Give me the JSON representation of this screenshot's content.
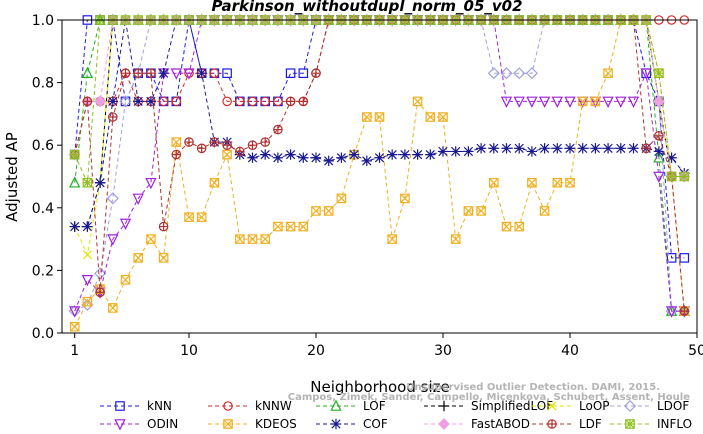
{
  "chart_data": {
    "type": "line",
    "title": "Parkinson_withoutdupl_norm_05_v02",
    "xlabel": "Neighborhood size",
    "ylabel": "Adjusted AP",
    "xlim": [
      0,
      50
    ],
    "ylim": [
      0,
      1
    ],
    "xticks": [
      "1",
      "10",
      "20",
      "30",
      "40",
      "50"
    ],
    "yticks": [
      "0.0",
      "0.2",
      "0.4",
      "0.6",
      "0.8",
      "1.0"
    ],
    "grid": false,
    "legend_position": "bottom",
    "x": [
      1,
      2,
      3,
      4,
      5,
      6,
      7,
      8,
      9,
      10,
      11,
      12,
      13,
      14,
      15,
      16,
      17,
      18,
      19,
      20,
      21,
      22,
      23,
      24,
      25,
      26,
      27,
      28,
      29,
      30,
      31,
      32,
      33,
      34,
      35,
      36,
      37,
      38,
      39,
      40,
      41,
      42,
      43,
      44,
      45,
      46,
      47,
      48,
      49
    ],
    "series": [
      {
        "name": "kNN",
        "color": "#1a1ae6",
        "dash": "4,3",
        "marker": "square",
        "values": [
          0.57,
          1,
          1,
          1,
          0.74,
          0.83,
          0.83,
          0.74,
          0.74,
          1,
          0.83,
          0.83,
          0.83,
          0.74,
          0.74,
          0.74,
          0.74,
          0.83,
          0.83,
          1,
          1,
          1,
          1,
          1,
          1,
          1,
          1,
          1,
          1,
          1,
          1,
          1,
          1,
          1,
          1,
          1,
          1,
          1,
          1,
          1,
          1,
          1,
          1,
          1,
          1,
          0.83,
          0.74,
          0.24,
          0.24
        ]
      },
      {
        "name": "kNNW",
        "color": "#d42a2a",
        "dash": "4,3",
        "marker": "circle",
        "values": [
          0.57,
          0.74,
          0.74,
          0.74,
          0.83,
          0.74,
          0.74,
          0.74,
          0.74,
          0.83,
          0.83,
          0.83,
          0.74,
          0.74,
          0.74,
          0.74,
          0.74,
          0.74,
          0.74,
          0.83,
          1,
          1,
          1,
          1,
          1,
          1,
          1,
          1,
          1,
          1,
          1,
          1,
          1,
          1,
          1,
          1,
          1,
          1,
          1,
          1,
          1,
          1,
          1,
          1,
          1,
          1,
          1,
          1,
          1
        ]
      },
      {
        "name": "LOF",
        "color": "#20b020",
        "dash": "4,3",
        "marker": "triangle-up",
        "values": [
          0.48,
          0.83,
          1,
          1,
          1,
          1,
          1,
          1,
          1,
          1,
          1,
          1,
          1,
          1,
          1,
          1,
          1,
          1,
          1,
          1,
          1,
          1,
          1,
          1,
          1,
          1,
          1,
          1,
          1,
          1,
          1,
          1,
          1,
          1,
          1,
          1,
          1,
          1,
          1,
          1,
          1,
          1,
          1,
          1,
          1,
          1,
          0.56,
          0.07,
          0.07
        ]
      },
      {
        "name": "SimplifiedLOF",
        "color": "#000000",
        "dash": "4,3",
        "marker": "plus",
        "values": [
          0.34,
          0.34,
          0.48,
          1,
          1,
          1,
          1,
          1,
          1,
          1,
          1,
          1,
          1,
          1,
          1,
          1,
          1,
          1,
          1,
          1,
          1,
          1,
          1,
          1,
          1,
          1,
          1,
          1,
          1,
          1,
          1,
          1,
          1,
          1,
          1,
          1,
          1,
          1,
          1,
          1,
          1,
          1,
          1,
          1,
          1,
          1,
          0.74,
          0.5,
          0.5
        ]
      },
      {
        "name": "LoOP",
        "color": "#e6e600",
        "dash": "4,3",
        "marker": "x",
        "values": [
          0.34,
          0.25,
          0.48,
          1,
          1,
          1,
          1,
          1,
          1,
          1,
          1,
          1,
          1,
          1,
          1,
          1,
          1,
          1,
          1,
          1,
          1,
          1,
          1,
          1,
          1,
          1,
          1,
          1,
          1,
          1,
          1,
          1,
          1,
          1,
          1,
          1,
          1,
          1,
          1,
          1,
          1,
          1,
          1,
          1,
          1,
          1,
          0.74,
          0.5,
          0.5
        ]
      },
      {
        "name": "LDOF",
        "color": "#a0a0e0",
        "dash": "4,3",
        "marker": "diamond",
        "values": [
          0.07,
          0.09,
          0.19,
          0.43,
          0.74,
          0.83,
          1,
          1,
          1,
          1,
          1,
          1,
          1,
          1,
          1,
          1,
          1,
          1,
          1,
          1,
          1,
          1,
          1,
          1,
          1,
          1,
          1,
          1,
          1,
          1,
          1,
          1,
          1,
          0.83,
          0.83,
          0.83,
          0.83,
          1,
          1,
          1,
          1,
          1,
          1,
          1,
          1,
          1,
          0.74,
          0.07,
          0.07
        ]
      },
      {
        "name": "ODIN",
        "color": "#a020e0",
        "dash": "4,3",
        "marker": "triangle-down",
        "values": [
          0.07,
          0.17,
          0.13,
          0.3,
          0.35,
          0.43,
          0.48,
          0.83,
          0.83,
          0.83,
          1,
          1,
          1,
          1,
          1,
          1,
          1,
          1,
          1,
          1,
          1,
          1,
          1,
          1,
          1,
          1,
          1,
          1,
          1,
          1,
          1,
          1,
          1,
          1,
          0.74,
          0.74,
          0.74,
          0.74,
          0.74,
          0.74,
          0.74,
          0.74,
          0.74,
          0.74,
          0.74,
          0.83,
          0.5,
          0.07,
          0.07
        ]
      },
      {
        "name": "KDEOS",
        "color": "#f0b020",
        "dash": "4,3",
        "marker": "square-x",
        "values": [
          0.02,
          0.1,
          0.14,
          0.08,
          0.17,
          0.24,
          0.3,
          0.24,
          0.61,
          0.37,
          0.37,
          0.48,
          0.57,
          0.3,
          0.3,
          0.3,
          0.34,
          0.34,
          0.34,
          0.39,
          0.39,
          0.43,
          0.57,
          0.69,
          0.69,
          0.3,
          0.43,
          0.74,
          0.69,
          0.69,
          0.3,
          0.39,
          0.39,
          0.48,
          0.34,
          0.34,
          0.48,
          0.39,
          0.48,
          0.48,
          0.74,
          0.74,
          0.83,
          1,
          1,
          1,
          0.83,
          0.5,
          0.07
        ]
      },
      {
        "name": "COF",
        "color": "#1a1a90",
        "dash": "4,3",
        "marker": "star",
        "values": [
          0.34,
          0.34,
          0.48,
          0.74,
          1,
          0.74,
          0.74,
          0.83,
          1,
          1,
          0.83,
          0.61,
          0.61,
          0.57,
          0.56,
          0.57,
          0.56,
          0.57,
          0.56,
          0.56,
          0.55,
          0.56,
          0.57,
          0.55,
          0.56,
          0.57,
          0.57,
          0.57,
          0.57,
          0.58,
          0.58,
          0.58,
          0.59,
          0.59,
          0.59,
          0.59,
          0.58,
          0.59,
          0.59,
          0.59,
          0.59,
          0.59,
          0.59,
          0.59,
          0.59,
          0.59,
          0.58,
          0.56,
          0.51
        ]
      },
      {
        "name": "FastABOD",
        "color": "#f0a0e0",
        "dash": "4,3",
        "marker": "diamond-fill",
        "values": [
          0.57,
          0.74,
          0.74,
          1,
          1,
          1,
          1,
          1,
          1,
          1,
          1,
          1,
          1,
          1,
          1,
          1,
          1,
          1,
          1,
          1,
          1,
          1,
          1,
          1,
          1,
          1,
          1,
          1,
          1,
          1,
          1,
          1,
          1,
          1,
          1,
          1,
          1,
          1,
          1,
          1,
          1,
          1,
          1,
          1,
          1,
          1,
          0.74,
          0.5,
          0.5
        ]
      },
      {
        "name": "LDF",
        "color": "#b03030",
        "dash": "4,3",
        "marker": "circle-plus",
        "values": [
          0.57,
          0.74,
          0.13,
          0.69,
          0.83,
          0.83,
          0.83,
          0.34,
          0.57,
          0.61,
          0.59,
          0.61,
          0.6,
          0.58,
          0.6,
          0.61,
          0.65,
          0.74,
          0.74,
          0.83,
          1,
          1,
          1,
          1,
          1,
          1,
          1,
          1,
          1,
          1,
          1,
          1,
          1,
          1,
          1,
          1,
          1,
          1,
          1,
          1,
          1,
          1,
          1,
          1,
          1,
          0.59,
          0.63,
          0.5,
          0.07
        ]
      },
      {
        "name": "INFLO",
        "color": "#90c020",
        "dash": "4,3",
        "marker": "square-star",
        "values": [
          0.57,
          0.48,
          1,
          1,
          1,
          1,
          1,
          1,
          1,
          1,
          1,
          1,
          1,
          1,
          1,
          1,
          1,
          1,
          1,
          1,
          1,
          1,
          1,
          1,
          1,
          1,
          1,
          1,
          1,
          1,
          1,
          1,
          1,
          1,
          1,
          1,
          1,
          1,
          1,
          1,
          1,
          1,
          1,
          1,
          1,
          1,
          0.83,
          0.5,
          0.5
        ]
      }
    ],
    "watermark": [
      "Campos, Zimek, Sander, Campello, Micenkova, Schubert, Assent, Houle",
      "Unsupervised Outlier Detection. DAMI, 2015."
    ]
  }
}
